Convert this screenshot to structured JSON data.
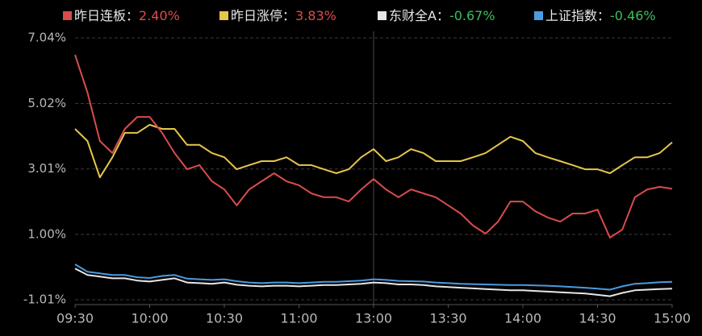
{
  "chart_data": {
    "type": "line",
    "x": [
      0,
      5,
      10,
      15,
      20,
      25,
      30,
      35,
      40,
      45,
      50,
      55,
      60,
      65,
      70,
      75,
      80,
      85,
      90,
      95,
      100,
      105,
      110,
      115,
      120,
      125,
      130,
      135,
      140,
      145,
      150,
      155,
      160,
      165,
      170,
      175,
      180,
      185,
      190,
      195,
      200,
      205,
      210,
      215,
      220,
      225,
      230,
      235,
      240
    ],
    "xlim": [
      0,
      240
    ],
    "xticks": [
      {
        "value": 0,
        "label": "09:30"
      },
      {
        "value": 30,
        "label": "10:00"
      },
      {
        "value": 60,
        "label": "10:30"
      },
      {
        "value": 90,
        "label": "11:00"
      },
      {
        "value": 120,
        "label": "13:00"
      },
      {
        "value": 150,
        "label": "13:30"
      },
      {
        "value": 180,
        "label": "14:00"
      },
      {
        "value": 210,
        "label": "14:30"
      },
      {
        "value": 240,
        "label": "15:00"
      }
    ],
    "ylim": [
      -1.01,
      7.04
    ],
    "yticks": [
      {
        "value": 7.04,
        "label": "7.04%"
      },
      {
        "value": 5.02,
        "label": "5.02%"
      },
      {
        "value": 3.01,
        "label": "3.01%"
      },
      {
        "value": 1.0,
        "label": "1.00%"
      },
      {
        "value": -1.01,
        "label": "-1.01%"
      }
    ],
    "grid": true,
    "divider_x": 120,
    "positive_color": "#e04c4c",
    "negative_color": "#3cbf5a",
    "series": [
      {
        "name": "昨日连板：",
        "color": "#d94c4c",
        "last": 2.4,
        "last_label": "2.40%",
        "values": [
          6.52,
          5.36,
          3.87,
          3.5,
          4.24,
          4.61,
          4.61,
          4.12,
          3.5,
          3.0,
          3.13,
          2.63,
          2.38,
          1.89,
          2.38,
          2.63,
          2.88,
          2.63,
          2.51,
          2.26,
          2.14,
          2.14,
          2.01,
          2.38,
          2.7,
          2.38,
          2.14,
          2.38,
          2.26,
          2.14,
          1.89,
          1.64,
          1.27,
          1.02,
          1.39,
          2.01,
          2.01,
          1.71,
          1.52,
          1.39,
          1.64,
          1.64,
          1.76,
          0.9,
          1.15,
          2.14,
          2.38,
          2.46,
          2.4
        ]
      },
      {
        "name": "昨日涨停：",
        "color": "#e6c64a",
        "last": 3.83,
        "last_label": "3.83%",
        "values": [
          4.24,
          3.87,
          2.75,
          3.37,
          4.12,
          4.12,
          4.37,
          4.24,
          4.24,
          3.75,
          3.75,
          3.5,
          3.37,
          3.0,
          3.13,
          3.25,
          3.25,
          3.37,
          3.13,
          3.13,
          3.0,
          2.88,
          3.0,
          3.37,
          3.62,
          3.25,
          3.37,
          3.62,
          3.5,
          3.25,
          3.25,
          3.25,
          3.37,
          3.5,
          3.75,
          4.0,
          3.87,
          3.5,
          3.37,
          3.25,
          3.13,
          3.0,
          3.0,
          2.88,
          3.13,
          3.37,
          3.37,
          3.5,
          3.83
        ]
      },
      {
        "name": "东财全A：",
        "color": "#e6e6e6",
        "last": -0.67,
        "last_label": "-0.67%",
        "values": [
          -0.05,
          -0.25,
          -0.3,
          -0.35,
          -0.35,
          -0.42,
          -0.45,
          -0.4,
          -0.35,
          -0.48,
          -0.5,
          -0.52,
          -0.48,
          -0.55,
          -0.58,
          -0.6,
          -0.58,
          -0.58,
          -0.6,
          -0.58,
          -0.56,
          -0.56,
          -0.54,
          -0.52,
          -0.48,
          -0.5,
          -0.54,
          -0.54,
          -0.56,
          -0.6,
          -0.62,
          -0.64,
          -0.66,
          -0.68,
          -0.7,
          -0.72,
          -0.72,
          -0.74,
          -0.76,
          -0.78,
          -0.8,
          -0.82,
          -0.86,
          -0.9,
          -0.8,
          -0.72,
          -0.7,
          -0.68,
          -0.67
        ]
      },
      {
        "name": "上证指数：",
        "color": "#4a9be0",
        "last": -0.46,
        "last_label": "-0.46%",
        "values": [
          0.08,
          -0.15,
          -0.2,
          -0.25,
          -0.25,
          -0.32,
          -0.34,
          -0.28,
          -0.25,
          -0.36,
          -0.38,
          -0.4,
          -0.38,
          -0.44,
          -0.48,
          -0.5,
          -0.48,
          -0.48,
          -0.5,
          -0.48,
          -0.46,
          -0.46,
          -0.44,
          -0.42,
          -0.38,
          -0.4,
          -0.43,
          -0.44,
          -0.45,
          -0.48,
          -0.5,
          -0.52,
          -0.53,
          -0.54,
          -0.55,
          -0.56,
          -0.56,
          -0.57,
          -0.58,
          -0.6,
          -0.62,
          -0.64,
          -0.67,
          -0.7,
          -0.6,
          -0.52,
          -0.5,
          -0.47,
          -0.46
        ]
      }
    ]
  }
}
